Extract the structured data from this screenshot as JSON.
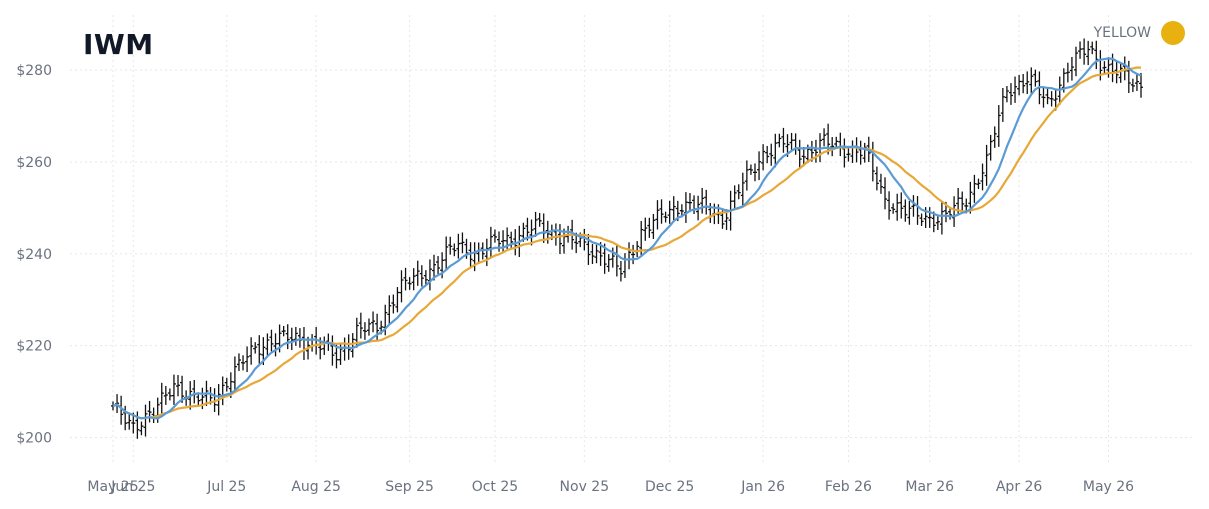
{
  "title": "IWM",
  "legend": {
    "label": "YELLOW",
    "color": "#e8b10f"
  },
  "colors": {
    "ohlc": "#111111",
    "fast_ma": "#5b9bd5",
    "slow_ma": "#e8a838",
    "grid": "#e5e7eb"
  },
  "chart_data": {
    "type": "ohlc",
    "title": "IWM",
    "ylim": [
      194,
      292
    ],
    "yticks": [
      200,
      220,
      240,
      260,
      280
    ],
    "ytick_labels": [
      "$200",
      "$220",
      "$240",
      "$260",
      "$280"
    ],
    "xticks": [
      {
        "label": "May 25",
        "index": 0
      },
      {
        "label": "Jun 25",
        "index": 5
      },
      {
        "label": "Jul 25",
        "index": 28
      },
      {
        "label": "Aug 25",
        "index": 50
      },
      {
        "label": "Sep 25",
        "index": 73
      },
      {
        "label": "Oct 25",
        "index": 94
      },
      {
        "label": "Nov 25",
        "index": 116
      },
      {
        "label": "Dec 25",
        "index": 137
      },
      {
        "label": "Jan 26",
        "index": 160
      },
      {
        "label": "Feb 26",
        "index": 181
      },
      {
        "label": "Mar 26",
        "index": 201
      },
      {
        "label": "Apr 26",
        "index": 223
      },
      {
        "label": "May 26",
        "index": 245
      }
    ],
    "grid": true,
    "legend_position": "top-right",
    "closes_every_5_sessions": [
      206,
      203,
      205,
      212,
      208,
      209,
      214,
      220,
      221,
      222,
      220,
      218,
      223,
      224,
      232,
      235,
      238,
      242,
      240,
      243,
      244,
      246,
      244,
      242,
      240,
      236,
      245,
      248,
      251,
      250,
      248,
      255,
      262,
      264,
      262,
      264,
      263,
      262,
      252,
      249,
      248,
      248,
      252,
      260,
      276,
      278,
      273,
      280,
      285,
      280,
      278
    ],
    "series": [
      {
        "type": "ohlc",
        "points": 254
      },
      {
        "type": "line",
        "window": 10
      },
      {
        "type": "line",
        "window": 20
      }
    ]
  }
}
